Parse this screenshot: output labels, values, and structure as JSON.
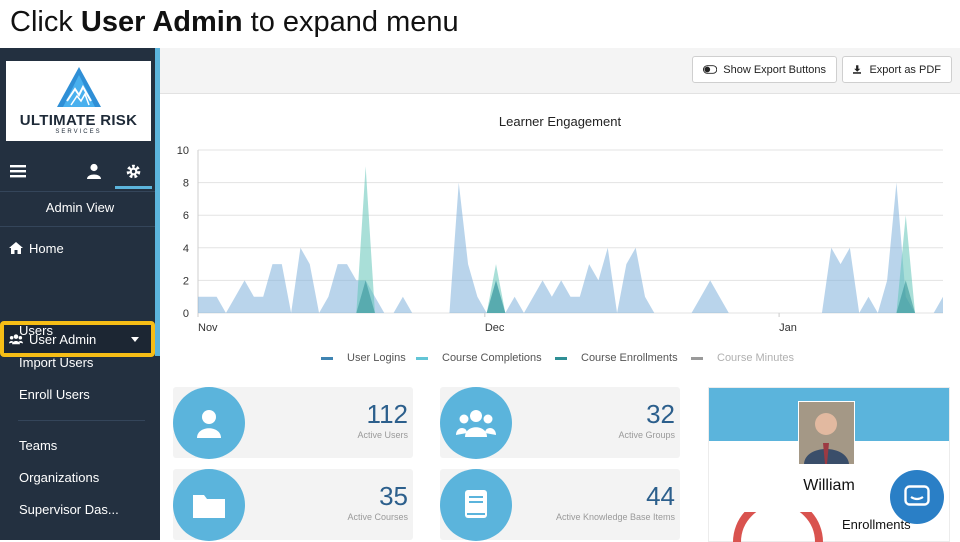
{
  "instruction": {
    "prefix": "Click ",
    "bold": "User Admin",
    "suffix": " to expand menu"
  },
  "logo": {
    "name": "ULTIMATE RISK",
    "sub": "SERVICES"
  },
  "sidebar": {
    "view_label": "Admin View",
    "home": "Home",
    "user_admin": "User Admin",
    "sub_items": [
      "Users",
      "Import Users",
      "Enroll Users"
    ],
    "items": [
      "Teams",
      "Organizations",
      "Supervisor Das..."
    ]
  },
  "topbar": {
    "export_toggle": "Show Export Buttons",
    "export_pdf": "Export as PDF"
  },
  "colors": {
    "accent": "#5bb4dc",
    "sidebar": "#233040",
    "highlight": "#f6bd16",
    "logins": "#7fb0da",
    "completions": "#63c5b8"
  },
  "chart_data": {
    "type": "area",
    "title": "Learner Engagement",
    "y_ticks": [
      "0",
      "2",
      "4",
      "6",
      "8",
      "10"
    ],
    "ylim": [
      0,
      10
    ],
    "x_tick_labels": [
      "Nov",
      "Dec",
      "Jan"
    ],
    "series": [
      {
        "name": "User Logins",
        "values": [
          1,
          1,
          1,
          0,
          1,
          2,
          1,
          1,
          3,
          3,
          0,
          4,
          3,
          0,
          1,
          3,
          3,
          2,
          2,
          1,
          0,
          0,
          1,
          0,
          0,
          0,
          0,
          0,
          8,
          3,
          1,
          0,
          2,
          0,
          1,
          0,
          1,
          2,
          1,
          2,
          1,
          1,
          3,
          2,
          4,
          0,
          3,
          4,
          1,
          0,
          0,
          0,
          0,
          0,
          1,
          2,
          1,
          0,
          0,
          0,
          0,
          0,
          0,
          0,
          0,
          0,
          0,
          0,
          4,
          3,
          4,
          0,
          1,
          0,
          2,
          8,
          1,
          0,
          0,
          0,
          1
        ],
        "color": "#7fb0da"
      },
      {
        "name": "Course Completions",
        "values": [
          0,
          0,
          0,
          0,
          0,
          0,
          0,
          0,
          0,
          0,
          0,
          0,
          0,
          0,
          0,
          0,
          0,
          0,
          9,
          0,
          0,
          0,
          0,
          0,
          0,
          0,
          0,
          0,
          0,
          0,
          0,
          0,
          3,
          0,
          0,
          0,
          0,
          0,
          0,
          0,
          0,
          0,
          0,
          0,
          0,
          0,
          0,
          0,
          0,
          0,
          0,
          0,
          0,
          0,
          0,
          0,
          0,
          0,
          0,
          0,
          0,
          0,
          0,
          0,
          0,
          0,
          0,
          0,
          0,
          0,
          0,
          0,
          0,
          0,
          0,
          0,
          6,
          0,
          0,
          0,
          0
        ],
        "color": "#63c5b8"
      },
      {
        "name": "Course Enrollments",
        "values": [
          0,
          0,
          0,
          0,
          0,
          0,
          0,
          0,
          0,
          0,
          0,
          0,
          0,
          0,
          0,
          0,
          0,
          0,
          2,
          0,
          0,
          0,
          0,
          0,
          0,
          0,
          0,
          0,
          0,
          0,
          0,
          0,
          2,
          0,
          0,
          0,
          0,
          0,
          0,
          0,
          0,
          0,
          0,
          0,
          0,
          0,
          0,
          0,
          0,
          0,
          0,
          0,
          0,
          0,
          0,
          0,
          0,
          0,
          0,
          0,
          0,
          0,
          0,
          0,
          0,
          0,
          0,
          0,
          0,
          0,
          0,
          0,
          0,
          0,
          0,
          0,
          2,
          0,
          0,
          0,
          0
        ],
        "color": "#2f8f95"
      },
      {
        "name": "Course Minutes",
        "values": [],
        "color": "#9a9a9a"
      }
    ]
  },
  "cards": [
    {
      "value": "112",
      "label": "Active Users",
      "icon": "user-icon"
    },
    {
      "value": "32",
      "label": "Active Groups",
      "icon": "group-icon"
    },
    {
      "value": "35",
      "label": "Active Courses",
      "icon": "folder-icon"
    },
    {
      "value": "44",
      "label": "Active Knowledge Base Items",
      "icon": "book-icon"
    }
  ],
  "profile": {
    "name": "William",
    "enrollments_label": "Enrollments"
  }
}
